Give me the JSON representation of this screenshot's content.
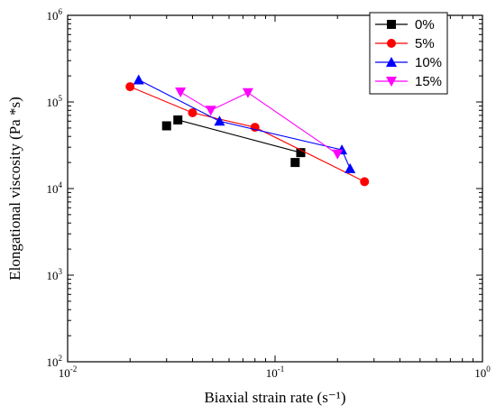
{
  "chart_data": {
    "type": "line",
    "xlabel": "Biaxial strain rate (s⁻¹)",
    "ylabel": "Elongational viscosity (Pa *s)",
    "xscale": "log",
    "yscale": "log",
    "xlim": [
      0.01,
      1
    ],
    "ylim": [
      100,
      1000000
    ],
    "x_ticks": [
      {
        "base": "10",
        "exp": "-2"
      },
      {
        "base": "10",
        "exp": "-1"
      },
      {
        "base": "10",
        "exp": "0"
      }
    ],
    "y_ticks": [
      {
        "base": "10",
        "exp": "2"
      },
      {
        "base": "10",
        "exp": "3"
      },
      {
        "base": "10",
        "exp": "4"
      },
      {
        "base": "10",
        "exp": "5"
      },
      {
        "base": "10",
        "exp": "6"
      }
    ],
    "legend_position": "top-right",
    "grid": false,
    "series": [
      {
        "name": "0%",
        "color": "#000000",
        "marker": "square",
        "points": [
          [
            0.03,
            53000
          ],
          [
            0.034,
            62000
          ],
          [
            0.125,
            20000
          ],
          [
            0.133,
            26000
          ]
        ],
        "line": [
          [
            0.034,
            62000
          ],
          [
            0.133,
            26000
          ]
        ]
      },
      {
        "name": "5%",
        "color": "#ff0000",
        "marker": "circle",
        "points": [
          [
            0.02,
            150000
          ],
          [
            0.04,
            75000
          ],
          [
            0.08,
            51000
          ],
          [
            0.27,
            12000
          ]
        ],
        "line": [
          [
            0.02,
            150000
          ],
          [
            0.04,
            75000
          ],
          [
            0.08,
            51000
          ],
          [
            0.27,
            12000
          ]
        ]
      },
      {
        "name": "10%",
        "color": "#0000ff",
        "marker": "triangle-up",
        "points": [
          [
            0.022,
            180000
          ],
          [
            0.054,
            60000
          ],
          [
            0.21,
            28000
          ],
          [
            0.23,
            17000
          ]
        ],
        "line": [
          [
            0.022,
            180000
          ],
          [
            0.054,
            60000
          ],
          [
            0.21,
            28000
          ],
          [
            0.23,
            17000
          ]
        ]
      },
      {
        "name": "15%",
        "color": "#ff00ff",
        "marker": "triangle-down",
        "points": [
          [
            0.035,
            130000
          ],
          [
            0.049,
            80000
          ],
          [
            0.074,
            128000
          ],
          [
            0.2,
            25000
          ]
        ],
        "line": [
          [
            0.035,
            130000
          ],
          [
            0.049,
            80000
          ],
          [
            0.074,
            128000
          ],
          [
            0.2,
            25000
          ]
        ]
      }
    ]
  }
}
